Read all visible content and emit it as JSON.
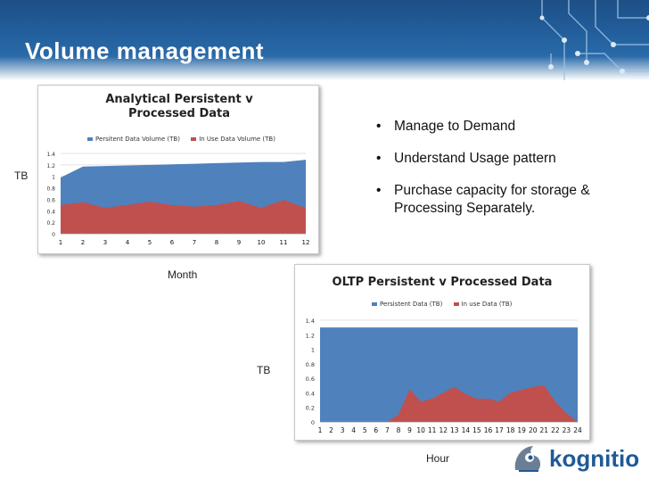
{
  "slide": {
    "title": "Volume management",
    "bullets": [
      "Manage to Demand",
      "Understand Usage pattern",
      "Purchase capacity for storage & Processing Separately."
    ],
    "logo_text": "kognitio"
  },
  "chart_data": [
    {
      "type": "area",
      "title": "Analytical Persistent v Processed Data",
      "xlabel": "Month",
      "ylabel": "TB",
      "x": [
        "1",
        "2",
        "3",
        "4",
        "5",
        "6",
        "7",
        "8",
        "9",
        "10",
        "11",
        "12"
      ],
      "ylim": [
        0,
        1.4
      ],
      "yticks": [
        "0",
        "0.2",
        "0.4",
        "0.6",
        "0.8",
        "1",
        "1.2",
        "1.4"
      ],
      "series": [
        {
          "name": "Persitent Data Volume (TB)",
          "color": "#4f81bd",
          "values": [
            0.98,
            1.17,
            1.18,
            1.19,
            1.2,
            1.21,
            1.22,
            1.23,
            1.24,
            1.25,
            1.25,
            1.29
          ]
        },
        {
          "name": "In Use Data Volume (TB)",
          "color": "#c0504d",
          "values": [
            0.5,
            0.55,
            0.45,
            0.5,
            0.56,
            0.5,
            0.47,
            0.5,
            0.57,
            0.45,
            0.59,
            0.45
          ]
        }
      ]
    },
    {
      "type": "area",
      "title": "OLTP Persistent v Processed Data",
      "xlabel": "Hour",
      "ylabel": "TB",
      "x": [
        "1",
        "2",
        "3",
        "4",
        "5",
        "6",
        "7",
        "8",
        "9",
        "10",
        "11",
        "12",
        "13",
        "14",
        "15",
        "16",
        "17",
        "18",
        "19",
        "20",
        "21",
        "22",
        "23",
        "24"
      ],
      "ylim": [
        0,
        1.4
      ],
      "yticks": [
        "0",
        "0.2",
        "0.4",
        "0.6",
        "0.8",
        "1",
        "1.2",
        "1.4"
      ],
      "series": [
        {
          "name": "Persistent Data (TB)",
          "color": "#4f81bd",
          "values": [
            1.3,
            1.3,
            1.3,
            1.3,
            1.3,
            1.3,
            1.3,
            1.3,
            1.3,
            1.3,
            1.3,
            1.3,
            1.3,
            1.3,
            1.3,
            1.3,
            1.3,
            1.3,
            1.3,
            1.3,
            1.3,
            1.3,
            1.3,
            1.3
          ]
        },
        {
          "name": "In use Data (TB)",
          "color": "#c0504d",
          "values": [
            0,
            0,
            0,
            0,
            0,
            0,
            0,
            0.1,
            0.45,
            0.28,
            0.32,
            0.4,
            0.48,
            0.38,
            0.32,
            0.32,
            0.28,
            0.4,
            0.44,
            0.48,
            0.5,
            0.28,
            0.12,
            0
          ]
        }
      ]
    }
  ]
}
